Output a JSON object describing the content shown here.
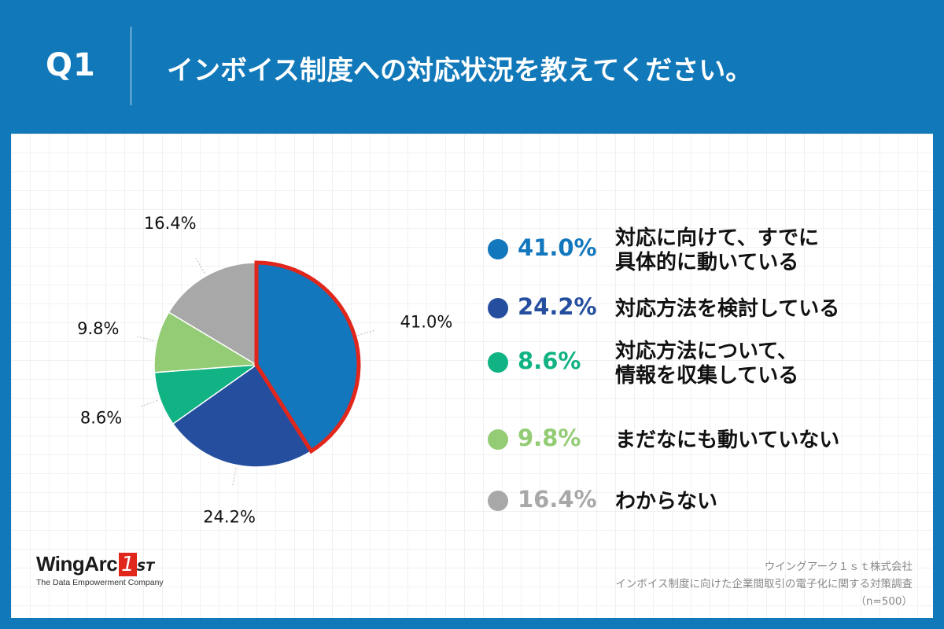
{
  "header": {
    "question_no": "Q1",
    "question": "インボイス制度への対応状況を教えてください。"
  },
  "colors": {
    "header_bg": "#1178b9",
    "highlight_border": "#e1261c"
  },
  "chart_data": {
    "type": "pie",
    "title": "インボイス制度への対応状況を教えてください。",
    "start": "12 o'clock, clockwise",
    "highlighted_index": 0,
    "slices": [
      {
        "label": "対応に向けて、すでに\n具体的に動いている",
        "value": 41.0,
        "display": "41.0%",
        "color": "#1377bd"
      },
      {
        "label": "対応方法を検討している",
        "value": 24.2,
        "display": "24.2%",
        "color": "#254f9e"
      },
      {
        "label": "対応方法について、\n情報を収集している",
        "value": 8.6,
        "display": "8.6%",
        "color": "#11b283"
      },
      {
        "label": "まだなにも動いていない",
        "value": 9.8,
        "display": "9.8%",
        "color": "#93cc74"
      },
      {
        "label": "わからない",
        "value": 16.4,
        "display": "16.4%",
        "color": "#a8a8a8"
      }
    ]
  },
  "logo": {
    "name": "WingArc",
    "mark": "1",
    "suffix": "ST",
    "tagline": "The Data Empowerment Company"
  },
  "source": {
    "company": "ウイングアーク１ｓｔ株式会社",
    "survey": "インボイス制度に向けた企業間取引の電子化に関する対策調査",
    "sample": "（n=500）"
  }
}
